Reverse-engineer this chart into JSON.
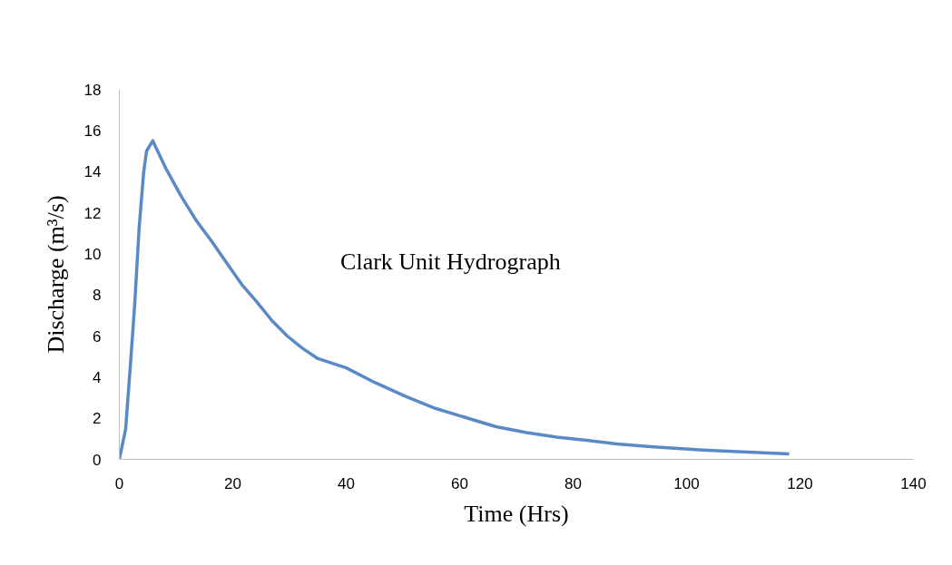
{
  "chart_data": {
    "type": "line",
    "xlabel": "Time (Hrs)",
    "ylabel": "Discharge (m³/s)",
    "annotations": [
      "Clark Unit Hydrograph"
    ],
    "xlim": [
      0,
      140
    ],
    "xticks": [
      0,
      20,
      40,
      60,
      80,
      100,
      120,
      140
    ],
    "ylim": [
      0,
      18
    ],
    "yticks": [
      0,
      2,
      4,
      6,
      8,
      10,
      12,
      14,
      16,
      18
    ],
    "grid": false,
    "marker": "none",
    "line_style": "solid",
    "series": [
      {
        "color": "#5a8ac6",
        "x": [
          0,
          1.1,
          1.9,
          2.7,
          3.5,
          4.3,
          4.8,
          5.9,
          6.4,
          8.3,
          10.9,
          13.6,
          16.3,
          18.9,
          21.6,
          24.3,
          26.9,
          29.6,
          32.3,
          35.0,
          40,
          45.1,
          50.4,
          55.7,
          61.1,
          66.4,
          71.8,
          77.1,
          82.4,
          87.7,
          93.1,
          98.4,
          103.7,
          109,
          118.1
        ],
        "values": [
          0,
          1.45,
          4.4,
          7.5,
          11.3,
          14.0,
          15.0,
          15.5,
          15.2,
          14.1,
          12.8,
          11.6,
          10.6,
          9.56,
          8.5,
          7.64,
          6.75,
          6.0,
          5.4,
          4.9,
          4.45,
          3.73,
          3.07,
          2.48,
          2.03,
          1.59,
          1.3,
          1.08,
          0.93,
          0.75,
          0.63,
          0.53,
          0.44,
          0.37,
          0.27
        ]
      }
    ]
  }
}
